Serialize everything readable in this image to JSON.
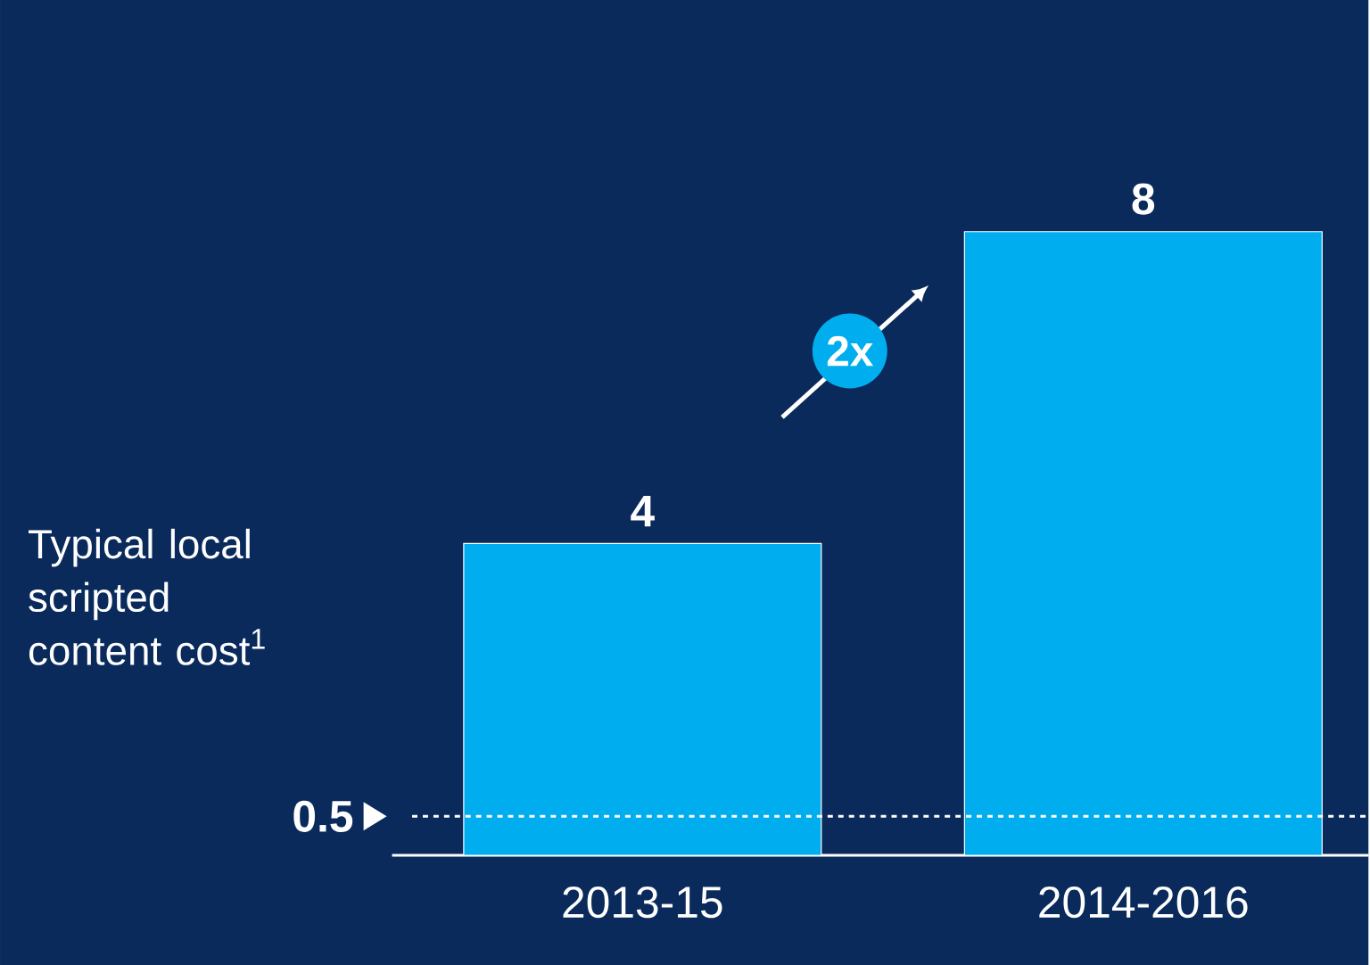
{
  "chart_data": {
    "type": "bar",
    "categories": [
      "2013-15",
      "2014-2016"
    ],
    "values": [
      4,
      8
    ],
    "color": "#00aeef",
    "data_labels": true,
    "ylabel": "Typical local scripted content cost$^{1}$",
    "ref_lines": [
      {
        "axis": "y",
        "value": 0.5,
        "label": "0.5",
        "color": "#ffffff",
        "line_style": "dashed"
      }
    ],
    "annotations": [
      "2x"
    ]
  }
}
